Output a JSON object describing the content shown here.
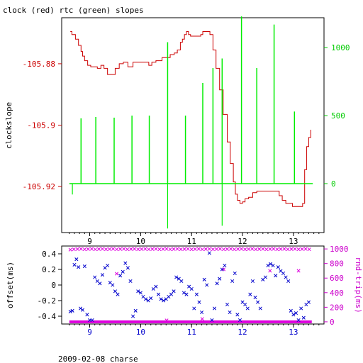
{
  "title": "clock (red) rtc (green) slopes",
  "footer": "2009-02-08 charse",
  "colors": {
    "clock": "#cc0000",
    "rtc": "#00ee00",
    "offset": "#0000cc",
    "rndtrip": "#dd00dd",
    "axis": "#000000",
    "right_axis_top": "#00cc00",
    "right_axis_bottom": "#cc00cc"
  },
  "chart_data": [
    {
      "type": "line",
      "title": "clock (red) rtc (green) slopes",
      "xlabel": "",
      "ylabel": "clockslope",
      "y2label": "",
      "xlim": [
        8.45,
        13.6
      ],
      "ylim": [
        -105.935,
        -105.865
      ],
      "y2lim": [
        -360,
        1220
      ],
      "x_ticks": [
        "9",
        "10",
        "11",
        "12",
        "13"
      ],
      "y_ticks": [
        "-105.88",
        "-105.9",
        "-105.92"
      ],
      "y_tick_values": [
        -105.88,
        -105.9,
        -105.92
      ],
      "y2_ticks": [
        "1000",
        "500",
        "0"
      ],
      "y2_tick_values": [
        1000,
        500,
        0
      ],
      "grid": false,
      "series": [
        {
          "name": "clock",
          "axis": "left",
          "color": "#cc0000",
          "x": [
            8.62,
            8.65,
            8.72,
            8.78,
            8.83,
            8.86,
            8.9,
            8.96,
            9.02,
            9.08,
            9.15,
            9.22,
            9.28,
            9.35,
            9.42,
            9.5,
            9.58,
            9.66,
            9.75,
            9.85,
            9.95,
            10.0,
            10.08,
            10.16,
            10.22,
            10.3,
            10.36,
            10.42,
            10.5,
            10.58,
            10.66,
            10.72,
            10.78,
            10.82,
            10.86,
            10.9,
            10.94,
            10.98,
            11.05,
            11.12,
            11.18,
            11.22,
            11.3,
            11.36,
            11.42,
            11.48,
            11.55,
            11.62,
            11.7,
            11.76,
            11.82,
            11.86,
            11.9,
            11.95,
            12.0,
            12.05,
            12.12,
            12.2,
            12.28,
            12.36,
            12.44,
            12.52,
            12.58,
            12.62,
            12.66,
            12.72,
            12.78,
            12.85,
            12.92,
            12.98,
            13.05,
            13.12,
            13.18,
            13.22,
            13.26,
            13.3,
            13.34
          ],
          "y": [
            -105.8695,
            -105.8705,
            -105.872,
            -105.874,
            -105.876,
            -105.8775,
            -105.879,
            -105.8805,
            -105.881,
            -105.881,
            -105.8815,
            -105.8805,
            -105.8815,
            -105.8835,
            -105.8835,
            -105.8815,
            -105.88,
            -105.8795,
            -105.881,
            -105.8795,
            -105.8795,
            -105.8795,
            -105.8795,
            -105.8805,
            -105.8795,
            -105.879,
            -105.879,
            -105.878,
            -105.878,
            -105.877,
            -105.8765,
            -105.8755,
            -105.873,
            -105.872,
            -105.8705,
            -105.8695,
            -105.8705,
            -105.871,
            -105.871,
            -105.871,
            -105.8705,
            -105.8695,
            -105.8695,
            -105.8705,
            -105.8755,
            -105.8815,
            -105.8885,
            -105.8965,
            -105.9055,
            -105.9125,
            -105.9185,
            -105.9225,
            -105.9245,
            -105.9255,
            -105.925,
            -105.924,
            -105.9235,
            -105.922,
            -105.9215,
            -105.9215,
            -105.9215,
            -105.9215,
            -105.9215,
            -105.9215,
            -105.9215,
            -105.923,
            -105.9245,
            -105.9255,
            -105.9255,
            -105.9265,
            -105.9265,
            -105.9265,
            -105.9255,
            -105.9145,
            -105.907,
            -105.904,
            -105.9015
          ]
        },
        {
          "name": "rtc",
          "axis": "right",
          "color": "#00ee00",
          "baseline": 0,
          "x_start": 8.6,
          "x_end": 13.38,
          "spikes": [
            {
              "x": 8.83,
              "y": 480
            },
            {
              "x": 9.12,
              "y": 490
            },
            {
              "x": 9.48,
              "y": 485
            },
            {
              "x": 9.83,
              "y": 500
            },
            {
              "x": 10.17,
              "y": 500
            },
            {
              "x": 10.53,
              "y": 1040
            },
            {
              "x": 10.88,
              "y": 500
            },
            {
              "x": 11.22,
              "y": 740
            },
            {
              "x": 11.42,
              "y": 850
            },
            {
              "x": 11.6,
              "y": 920
            },
            {
              "x": 11.98,
              "y": 1230
            },
            {
              "x": 12.28,
              "y": 850
            },
            {
              "x": 12.62,
              "y": 1170
            },
            {
              "x": 13.02,
              "y": 530
            }
          ],
          "dips": [
            {
              "x": 8.66,
              "y": -80
            },
            {
              "x": 10.53,
              "y": -330
            },
            {
              "x": 11.6,
              "y": -310
            }
          ]
        }
      ]
    },
    {
      "type": "scatter",
      "title": "",
      "xlabel": "",
      "ylabel": "offset(ms)",
      "y2label": "rnd-trip(ms)",
      "xlim": [
        8.45,
        13.6
      ],
      "ylim": [
        -0.5,
        0.5
      ],
      "y2lim": [
        -30,
        1040
      ],
      "x_ticks": [
        "9",
        "10",
        "11",
        "12",
        "13"
      ],
      "y_ticks": [
        "0.4",
        "0.2",
        "0",
        "-0.2",
        "-0.4"
      ],
      "y_tick_values": [
        0.4,
        0.2,
        0,
        -0.2,
        -0.4
      ],
      "y2_ticks": [
        "1000",
        "800",
        "600",
        "400",
        "200",
        "0"
      ],
      "y2_tick_values": [
        1000,
        800,
        600,
        400,
        200,
        0
      ],
      "grid": false,
      "series": [
        {
          "name": "offset",
          "axis": "left",
          "color": "#0000cc",
          "marker": "x",
          "x": [
            8.62,
            8.66,
            8.7,
            8.74,
            8.78,
            8.82,
            8.86,
            8.9,
            8.95,
            9.0,
            9.05,
            9.1,
            9.15,
            9.2,
            9.25,
            9.3,
            9.35,
            9.4,
            9.45,
            9.5,
            9.55,
            9.6,
            9.65,
            9.7,
            9.75,
            9.8,
            9.85,
            9.9,
            9.95,
            10.0,
            10.05,
            10.1,
            10.15,
            10.2,
            10.25,
            10.3,
            10.35,
            10.4,
            10.45,
            10.5,
            10.55,
            10.6,
            10.65,
            10.7,
            10.75,
            10.8,
            10.85,
            10.9,
            10.95,
            11.0,
            11.05,
            11.1,
            11.15,
            11.2,
            11.25,
            11.3,
            11.35,
            11.4,
            11.45,
            11.5,
            11.55,
            11.6,
            11.65,
            11.7,
            11.75,
            11.8,
            11.85,
            11.9,
            11.95,
            12.0,
            12.05,
            12.1,
            12.15,
            12.2,
            12.25,
            12.3,
            12.35,
            12.4,
            12.45,
            12.5,
            12.55,
            12.6,
            12.65,
            12.7,
            12.75,
            12.8,
            12.85,
            12.9,
            12.95,
            13.0,
            13.05,
            13.1,
            13.15,
            13.2,
            13.25,
            13.3
          ],
          "y": [
            -0.34,
            -0.33,
            0.26,
            0.33,
            0.23,
            -0.3,
            -0.32,
            0.24,
            -0.38,
            -0.45,
            -0.45,
            0.1,
            0.05,
            0.02,
            0.13,
            0.22,
            0.25,
            0.03,
            0.0,
            -0.08,
            -0.12,
            0.12,
            0.17,
            0.28,
            0.22,
            0.05,
            -0.4,
            -0.33,
            -0.08,
            -0.1,
            -0.15,
            -0.18,
            -0.2,
            -0.17,
            -0.05,
            -0.02,
            -0.12,
            -0.18,
            -0.2,
            -0.18,
            -0.15,
            -0.12,
            -0.08,
            0.1,
            0.08,
            0.05,
            -0.1,
            -0.12,
            -0.02,
            -0.05,
            -0.3,
            -0.12,
            -0.22,
            -0.35,
            0.07,
            0.0,
            0.41,
            -0.45,
            -0.3,
            0.02,
            0.08,
            0.2,
            0.25,
            -0.25,
            -0.35,
            0.05,
            0.15,
            -0.38,
            -0.45,
            -0.22,
            -0.25,
            -0.3,
            -0.12,
            0.05,
            -0.16,
            -0.22,
            -0.3,
            0.07,
            0.1,
            0.25,
            0.27,
            0.25,
            0.12,
            0.23,
            0.18,
            0.15,
            0.1,
            0.05,
            -0.33,
            -0.38,
            -0.36,
            -0.45,
            -0.3,
            -0.42,
            -0.25,
            -0.22
          ]
        },
        {
          "name": "rnd-trip",
          "axis": "right",
          "color": "#dd00dd",
          "marker": "x",
          "x": [
            8.62,
            8.69,
            8.76,
            8.83,
            8.9,
            8.97,
            9.04,
            9.11,
            9.18,
            9.25,
            9.32,
            9.39,
            9.46,
            9.53,
            9.6,
            9.67,
            9.74,
            9.81,
            9.88,
            9.95,
            10.02,
            10.09,
            10.16,
            10.23,
            10.3,
            10.37,
            10.44,
            10.51,
            10.58,
            10.65,
            10.72,
            10.79,
            10.86,
            10.93,
            11.0,
            11.07,
            11.14,
            11.21,
            11.28,
            11.35,
            11.42,
            11.49,
            11.56,
            11.63,
            11.7,
            11.77,
            11.84,
            11.91,
            11.98,
            12.05,
            12.12,
            12.19,
            12.26,
            12.33,
            12.4,
            12.47,
            12.54,
            12.61,
            12.68,
            12.75,
            12.82,
            12.89,
            12.96,
            13.03,
            13.1,
            13.17,
            13.24,
            13.31,
            9.53,
            10.51,
            11.21,
            11.63,
            12.54,
            13.1
          ],
          "y": [
            990,
            995,
            998,
            1000,
            995,
            998,
            1000,
            995,
            998,
            1000,
            995,
            998,
            1000,
            995,
            998,
            1000,
            995,
            998,
            1000,
            995,
            998,
            1000,
            995,
            998,
            1000,
            995,
            998,
            1000,
            995,
            998,
            1000,
            995,
            998,
            1000,
            995,
            998,
            1000,
            995,
            998,
            1000,
            995,
            998,
            1000,
            995,
            998,
            1000,
            995,
            998,
            1000,
            995,
            998,
            1000,
            995,
            998,
            1000,
            995,
            998,
            1000,
            995,
            998,
            1000,
            995,
            998,
            1000,
            995,
            998,
            1000,
            995,
            660,
            20,
            40,
            720,
            700,
            700
          ],
          "baseline_band": {
            "x_start": 8.6,
            "x_end": 13.36,
            "y": 0
          }
        }
      ]
    }
  ]
}
